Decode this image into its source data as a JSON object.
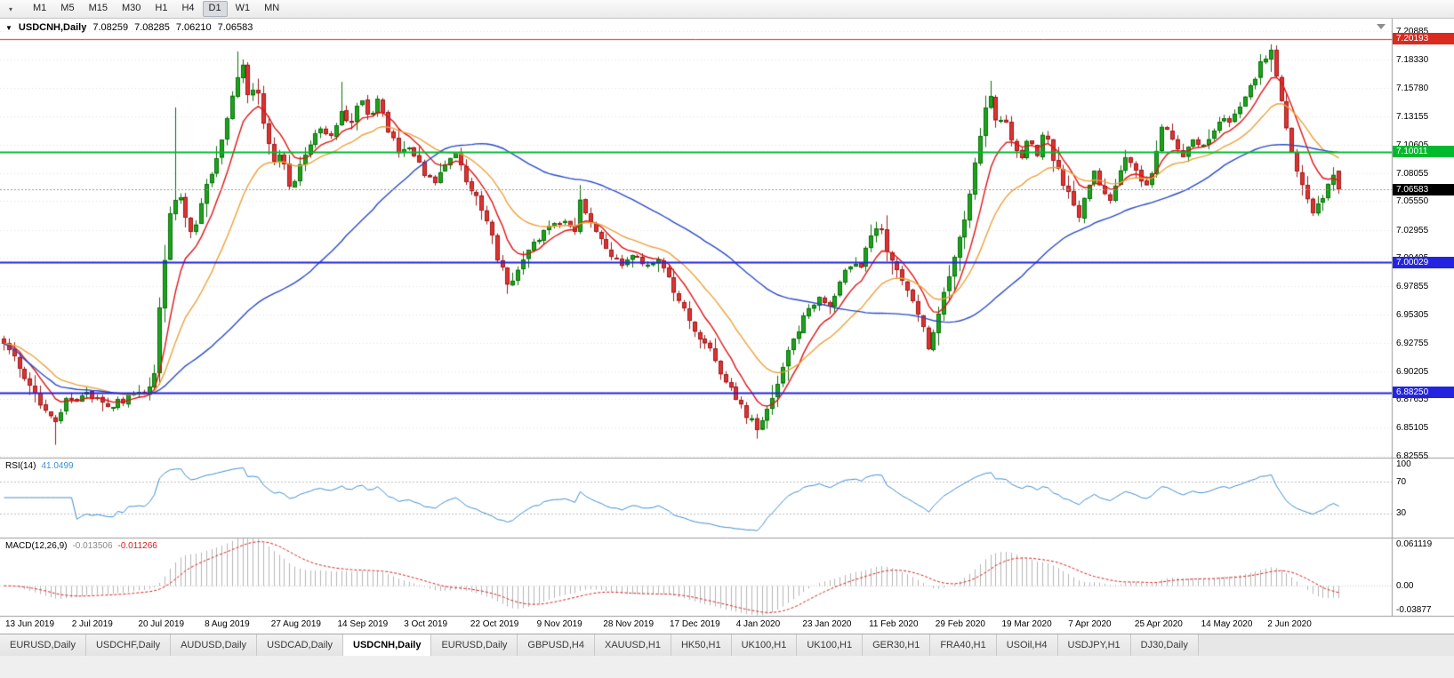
{
  "toolbar": {
    "overflow_icon": "▾",
    "timeframes": [
      "M1",
      "M5",
      "M15",
      "M30",
      "H1",
      "H4",
      "D1",
      "W1",
      "MN"
    ],
    "active_timeframe": "D1"
  },
  "chart": {
    "expander_icon": "▼",
    "title": "USDCNH,Daily",
    "quote": {
      "open": "7.08259",
      "high": "7.08285",
      "low": "7.06210",
      "close": "7.06583"
    }
  },
  "rsi_panel": {
    "label": "RSI(14)",
    "value": "41.0499",
    "levels": [
      "100",
      "70",
      "30"
    ]
  },
  "macd_panel": {
    "label": "MACD(12,26,9)",
    "value_main": "-0.013506",
    "value_signal": "-0.011266",
    "scale": [
      "0.061119",
      "0.00",
      "-0.03877"
    ]
  },
  "tabs": {
    "items": [
      "EURUSD,Daily",
      "USDCHF,Daily",
      "AUDUSD,Daily",
      "USDCAD,Daily",
      "USDCNH,Daily",
      "EURUSD,Daily",
      "GBPUSD,H4",
      "XAUUSD,H1",
      "HK50,H1",
      "UK100,H1",
      "UK100,H1",
      "GER30,H1",
      "FRA40,H1",
      "USOil,H4",
      "USDJPY,H1",
      "DJ30,Daily"
    ],
    "active_index": 4
  },
  "chart_data": {
    "type": "candlestick",
    "symbol": "USDCNH",
    "timeframe": "Daily",
    "visible_range": {
      "price_min": 6.8248,
      "price_max": 7.2089,
      "bars": 258
    },
    "last_bar": {
      "open": 7.08259,
      "high": 7.08285,
      "low": 7.0621,
      "close": 7.06583
    },
    "grid": "horizontal-dotted",
    "legend": false,
    "y_ticks": [
      "7.20885",
      "7.18330",
      "7.15780",
      "7.13155",
      "7.10605",
      "7.08055",
      "7.05550",
      "7.02955",
      "7.00405",
      "6.97855",
      "6.95305",
      "6.92755",
      "6.90205",
      "6.87655",
      "6.85105",
      "6.82555"
    ],
    "x_labels": [
      "13 Jun 2019",
      "2 Jul 2019",
      "20 Jul 2019",
      "8 Aug 2019",
      "27 Aug 2019",
      "14 Sep 2019",
      "3 Oct 2019",
      "22 Oct 2019",
      "9 Nov 2019",
      "28 Nov 2019",
      "17 Dec 2019",
      "4 Jan 2020",
      "23 Jan 2020",
      "11 Feb 2020",
      "29 Feb 2020",
      "19 Mar 2020",
      "7 Apr 2020",
      "25 Apr 2020",
      "14 May 2020",
      "2 Jun 2020"
    ],
    "horizontal_lines": [
      {
        "price": 7.20193,
        "label": "7.20193",
        "color": "#d92b20",
        "width": 1
      },
      {
        "price": 7.10011,
        "label": "7.10011",
        "color": "#00ba2e",
        "width": 2
      },
      {
        "price": 7.00029,
        "label": "7.00029",
        "color": "#2424e0",
        "width": 2
      },
      {
        "price": 6.8825,
        "label": "6.88250",
        "color": "#2424e0",
        "width": 2
      }
    ],
    "current_price": {
      "price": 7.06583,
      "label": "7.06583",
      "color": "#000000"
    },
    "moving_averages": [
      {
        "period": 8,
        "method": "ema",
        "color": "#e01414"
      },
      {
        "period": 20,
        "method": "ema",
        "color": "#eda23c"
      },
      {
        "period": 55,
        "method": "sma",
        "color": "#2b4bc8"
      }
    ],
    "candle_colors": {
      "up_fill": "#1da31d",
      "up_stroke": "#0a700a",
      "down_fill": "#e03232",
      "down_stroke": "#9c1c1c"
    },
    "anchors": [
      [
        0.0,
        6.93
      ],
      [
        0.012,
        6.904
      ],
      [
        0.022,
        6.886
      ],
      [
        0.03,
        6.868
      ],
      [
        0.037,
        6.854
      ],
      [
        0.045,
        6.874
      ],
      [
        0.062,
        6.88
      ],
      [
        0.078,
        6.871
      ],
      [
        0.093,
        6.878
      ],
      [
        0.105,
        6.883
      ],
      [
        0.112,
        6.892
      ],
      [
        0.119,
        6.99
      ],
      [
        0.125,
        7.048
      ],
      [
        0.131,
        7.066
      ],
      [
        0.137,
        7.04
      ],
      [
        0.142,
        7.024
      ],
      [
        0.148,
        7.058
      ],
      [
        0.156,
        7.078
      ],
      [
        0.162,
        7.102
      ],
      [
        0.168,
        7.138
      ],
      [
        0.174,
        7.168
      ],
      [
        0.179,
        7.176
      ],
      [
        0.184,
        7.146
      ],
      [
        0.189,
        7.16
      ],
      [
        0.195,
        7.124
      ],
      [
        0.201,
        7.09
      ],
      [
        0.208,
        7.1
      ],
      [
        0.215,
        7.064
      ],
      [
        0.223,
        7.09
      ],
      [
        0.231,
        7.112
      ],
      [
        0.239,
        7.122
      ],
      [
        0.247,
        7.112
      ],
      [
        0.253,
        7.14
      ],
      [
        0.26,
        7.122
      ],
      [
        0.267,
        7.146
      ],
      [
        0.274,
        7.13
      ],
      [
        0.281,
        7.146
      ],
      [
        0.288,
        7.12
      ],
      [
        0.296,
        7.098
      ],
      [
        0.304,
        7.108
      ],
      [
        0.312,
        7.086
      ],
      [
        0.321,
        7.072
      ],
      [
        0.33,
        7.088
      ],
      [
        0.339,
        7.096
      ],
      [
        0.348,
        7.07
      ],
      [
        0.356,
        7.058
      ],
      [
        0.364,
        7.028
      ],
      [
        0.372,
        6.996
      ],
      [
        0.379,
        6.978
      ],
      [
        0.385,
        6.992
      ],
      [
        0.392,
        7.008
      ],
      [
        0.401,
        7.022
      ],
      [
        0.41,
        7.032
      ],
      [
        0.42,
        7.036
      ],
      [
        0.428,
        7.03
      ],
      [
        0.433,
        7.06
      ],
      [
        0.438,
        7.036
      ],
      [
        0.446,
        7.026
      ],
      [
        0.454,
        7.01
      ],
      [
        0.463,
        7.0
      ],
      [
        0.472,
        7.006
      ],
      [
        0.481,
        6.996
      ],
      [
        0.489,
        7.002
      ],
      [
        0.497,
        6.988
      ],
      [
        0.506,
        6.964
      ],
      [
        0.515,
        6.944
      ],
      [
        0.523,
        6.93
      ],
      [
        0.531,
        6.918
      ],
      [
        0.54,
        6.894
      ],
      [
        0.548,
        6.878
      ],
      [
        0.556,
        6.862
      ],
      [
        0.565,
        6.85
      ],
      [
        0.573,
        6.872
      ],
      [
        0.579,
        6.89
      ],
      [
        0.586,
        6.914
      ],
      [
        0.594,
        6.934
      ],
      [
        0.602,
        6.958
      ],
      [
        0.61,
        6.968
      ],
      [
        0.618,
        6.96
      ],
      [
        0.626,
        6.98
      ],
      [
        0.635,
        7.002
      ],
      [
        0.641,
        6.99
      ],
      [
        0.648,
        7.02
      ],
      [
        0.656,
        7.038
      ],
      [
        0.662,
        7.01
      ],
      [
        0.669,
        6.992
      ],
      [
        0.677,
        6.972
      ],
      [
        0.685,
        6.952
      ],
      [
        0.693,
        6.924
      ],
      [
        0.698,
        6.944
      ],
      [
        0.706,
        6.978
      ],
      [
        0.714,
        7.012
      ],
      [
        0.721,
        7.044
      ],
      [
        0.728,
        7.094
      ],
      [
        0.734,
        7.134
      ],
      [
        0.74,
        7.156
      ],
      [
        0.744,
        7.12
      ],
      [
        0.749,
        7.136
      ],
      [
        0.755,
        7.108
      ],
      [
        0.761,
        7.092
      ],
      [
        0.768,
        7.114
      ],
      [
        0.774,
        7.098
      ],
      [
        0.78,
        7.12
      ],
      [
        0.786,
        7.092
      ],
      [
        0.792,
        7.078
      ],
      [
        0.799,
        7.058
      ],
      [
        0.805,
        7.042
      ],
      [
        0.811,
        7.06
      ],
      [
        0.817,
        7.08
      ],
      [
        0.823,
        7.068
      ],
      [
        0.829,
        7.058
      ],
      [
        0.835,
        7.08
      ],
      [
        0.842,
        7.096
      ],
      [
        0.848,
        7.08
      ],
      [
        0.854,
        7.068
      ],
      [
        0.861,
        7.086
      ],
      [
        0.869,
        7.13
      ],
      [
        0.876,
        7.108
      ],
      [
        0.883,
        7.094
      ],
      [
        0.89,
        7.11
      ],
      [
        0.897,
        7.1
      ],
      [
        0.904,
        7.118
      ],
      [
        0.911,
        7.13
      ],
      [
        0.918,
        7.126
      ],
      [
        0.925,
        7.14
      ],
      [
        0.932,
        7.152
      ],
      [
        0.939,
        7.172
      ],
      [
        0.945,
        7.186
      ],
      [
        0.95,
        7.192
      ],
      [
        0.955,
        7.158
      ],
      [
        0.96,
        7.128
      ],
      [
        0.965,
        7.098
      ],
      [
        0.97,
        7.078
      ],
      [
        0.975,
        7.058
      ],
      [
        0.98,
        7.046
      ],
      [
        0.988,
        7.06
      ],
      [
        0.996,
        7.082
      ],
      [
        1.0,
        7.066
      ]
    ],
    "spikes": [
      {
        "f": 0.037,
        "type": "low",
        "price": 6.8355
      },
      {
        "f": 0.128,
        "type": "high",
        "price": 7.14
      },
      {
        "f": 0.174,
        "type": "high",
        "price": 7.1905
      },
      {
        "f": 0.253,
        "type": "high",
        "price": 7.163
      },
      {
        "f": 0.433,
        "type": "high",
        "price": 7.07
      },
      {
        "f": 0.565,
        "type": "low",
        "price": 6.843
      },
      {
        "f": 0.74,
        "type": "high",
        "price": 7.164
      },
      {
        "f": 0.95,
        "type": "high",
        "price": 7.196
      }
    ],
    "indicators": {
      "rsi": {
        "period": 14,
        "current": 41.0499,
        "color": "#3f8fd2",
        "levels": [
          70,
          30
        ],
        "range": [
          0,
          100
        ]
      },
      "macd": {
        "fast": 12,
        "slow": 26,
        "signal": 9,
        "current_main": -0.013506,
        "current_signal": -0.011266,
        "range": [
          -0.03877,
          0.061119
        ],
        "histogram_color": "#b5b5b5",
        "signal_color": "#d62020"
      }
    }
  }
}
